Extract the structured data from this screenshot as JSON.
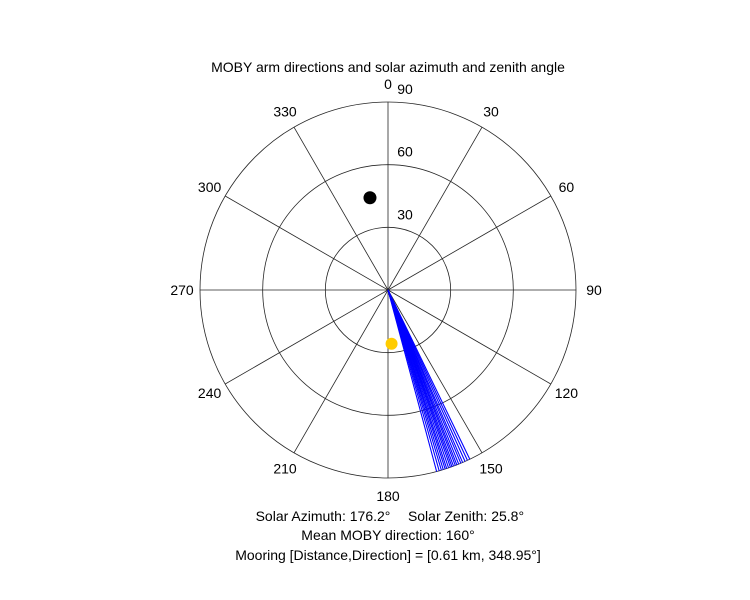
{
  "chart_data": {
    "type": "polar",
    "title": "MOBY arm directions and solar azimuth and zenith angle",
    "theta_direction": "clockwise",
    "theta_zero": "top",
    "angle_ticks": [
      "0",
      "30",
      "60",
      "90",
      "120",
      "150",
      "180",
      "210",
      "240",
      "270",
      "300",
      "330"
    ],
    "angle_tick_values": [
      0,
      30,
      60,
      90,
      120,
      150,
      180,
      210,
      240,
      270,
      300,
      330
    ],
    "radial_ticks": [
      "30",
      "60",
      "90"
    ],
    "radial_tick_values": [
      30,
      60,
      90
    ],
    "rlim": [
      0,
      90
    ],
    "grid": true,
    "series": [
      {
        "kind": "rays",
        "color": "#0000ff",
        "r": 90,
        "theta": [
          154.2,
          155.0,
          155.8,
          156.6,
          157.2,
          157.9,
          158.5,
          159.0,
          159.6,
          160.1,
          160.6,
          161.2,
          161.8,
          162.3,
          162.9,
          163.5,
          164.2,
          165.0
        ]
      },
      {
        "kind": "marker",
        "name": "sun",
        "color": "#ffcc00",
        "theta": 176.2,
        "r": 25.8
      },
      {
        "kind": "marker",
        "name": "mooring",
        "color": "#000000",
        "theta": 348.95,
        "r": 45
      }
    ],
    "annotations": {
      "line1_a": "Solar Azimuth: 176.2°",
      "line1_b": "Solar Zenith: 25.8°",
      "line2": "Mean MOBY direction: 160°",
      "line3": "Mooring [Distance,Direction] = [0.61 km, 348.95°]"
    }
  }
}
